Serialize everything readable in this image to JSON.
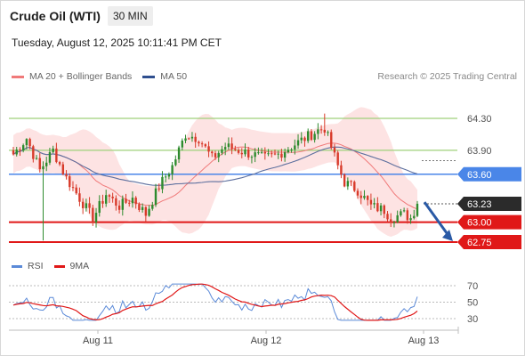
{
  "header": {
    "title": "Crude Oil (WTI)",
    "timeframe": "30 MIN",
    "datetime": "Tuesday, August 12, 2025 10:11:41 PM CET"
  },
  "legend": {
    "ma20_label": "MA 20 + Bollinger Bands",
    "ma50_label": "MA 50",
    "credit": "Research © 2025 Trading Central"
  },
  "rsi_legend": {
    "rsi_label": "RSI",
    "ma9_label": "9MA"
  },
  "colors": {
    "up": "#2e8b2e",
    "down": "#d83a2a",
    "bollinger_fill": "#fde0e0",
    "ma20": "#f07a7a",
    "ma50": "#5d6f9e",
    "resistance": "#9fd07a",
    "pivot": "#4a86e8",
    "support": "#e01818",
    "current_price": "#2b2b2b",
    "rsi": "#5b8ad8",
    "rsi_ma": "#e01818",
    "arrow": "#2a5aa6"
  },
  "chart_data": [
    {
      "type": "candlestick",
      "title": "Crude Oil (WTI)",
      "interval": "30 MIN",
      "x_tick_labels": [
        "Aug 11",
        "Aug 12",
        "Aug 13"
      ],
      "ylim": [
        62.5,
        64.55
      ],
      "levels": [
        {
          "value": 64.3,
          "label": "64.30",
          "kind": "resistance"
        },
        {
          "value": 63.9,
          "label": "63.90",
          "kind": "resistance"
        },
        {
          "value": 63.6,
          "label": "63.60",
          "kind": "pivot"
        },
        {
          "value": 63.23,
          "label": "63.23",
          "kind": "current"
        },
        {
          "value": 63.0,
          "label": "63.00",
          "kind": "support"
        },
        {
          "value": 62.75,
          "label": "62.75",
          "kind": "support"
        }
      ],
      "series": [
        {
          "name": "MA 20 + Bollinger Bands",
          "kind": "ma20_bollinger"
        },
        {
          "name": "MA 50",
          "kind": "ma50"
        }
      ],
      "forecast_arrow": {
        "from": 63.25,
        "to": 62.75,
        "direction": "down"
      }
    },
    {
      "type": "line",
      "title": "RSI",
      "series": [
        {
          "name": "RSI"
        },
        {
          "name": "9MA"
        }
      ],
      "y_tick_labels": [
        "70",
        "50",
        "30"
      ],
      "ylim": [
        25,
        75
      ]
    }
  ]
}
